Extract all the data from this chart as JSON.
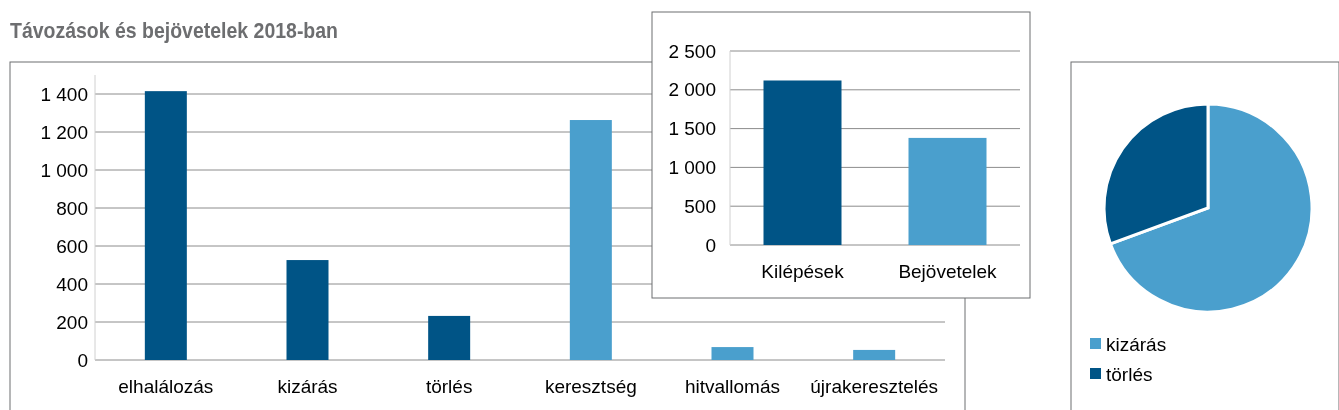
{
  "chart_data": [
    {
      "type": "bar",
      "title": "Távozások és bejövetelek 2018-ban",
      "categories": [
        "elhalálozás",
        "kizárás",
        "törlés",
        "keresztség",
        "hitvallomás",
        "újrakeresztelés"
      ],
      "values": [
        1415,
        526,
        232,
        1263,
        68,
        53
      ],
      "colors": [
        "#005486",
        "#005486",
        "#005486",
        "#4a9fcd",
        "#4a9fcd",
        "#4a9fcd"
      ],
      "ylim": [
        0,
        1500
      ],
      "yticks": [
        {
          "value": 0,
          "label": "0"
        },
        {
          "value": 200,
          "label": "200"
        },
        {
          "value": 400,
          "label": "400"
        },
        {
          "value": 600,
          "label": "600"
        },
        {
          "value": 800,
          "label": "800"
        },
        {
          "value": 1000,
          "label": "1 000"
        },
        {
          "value": 1200,
          "label": "1 200"
        },
        {
          "value": 1400,
          "label": "1 400"
        }
      ],
      "grid": "y"
    },
    {
      "type": "bar",
      "categories": [
        "Kilépések",
        "Bejövetelek"
      ],
      "values": [
        2120,
        1380
      ],
      "colors": [
        "#005486",
        "#4a9fcd"
      ],
      "ylim": [
        0,
        2500
      ],
      "yticks": [
        {
          "value": 0,
          "label": "0"
        },
        {
          "value": 500,
          "label": "500"
        },
        {
          "value": 1000,
          "label": "1 000"
        },
        {
          "value": 1500,
          "label": "1 500"
        },
        {
          "value": 2000,
          "label": "2 000"
        },
        {
          "value": 2500,
          "label": "2 500"
        }
      ],
      "grid": "y"
    },
    {
      "type": "pie",
      "categories": [
        "kizárás",
        "törlés"
      ],
      "values": [
        69.4,
        30.6
      ],
      "colors": [
        "#4a9fcd",
        "#005486"
      ],
      "legend": "bottom"
    }
  ]
}
